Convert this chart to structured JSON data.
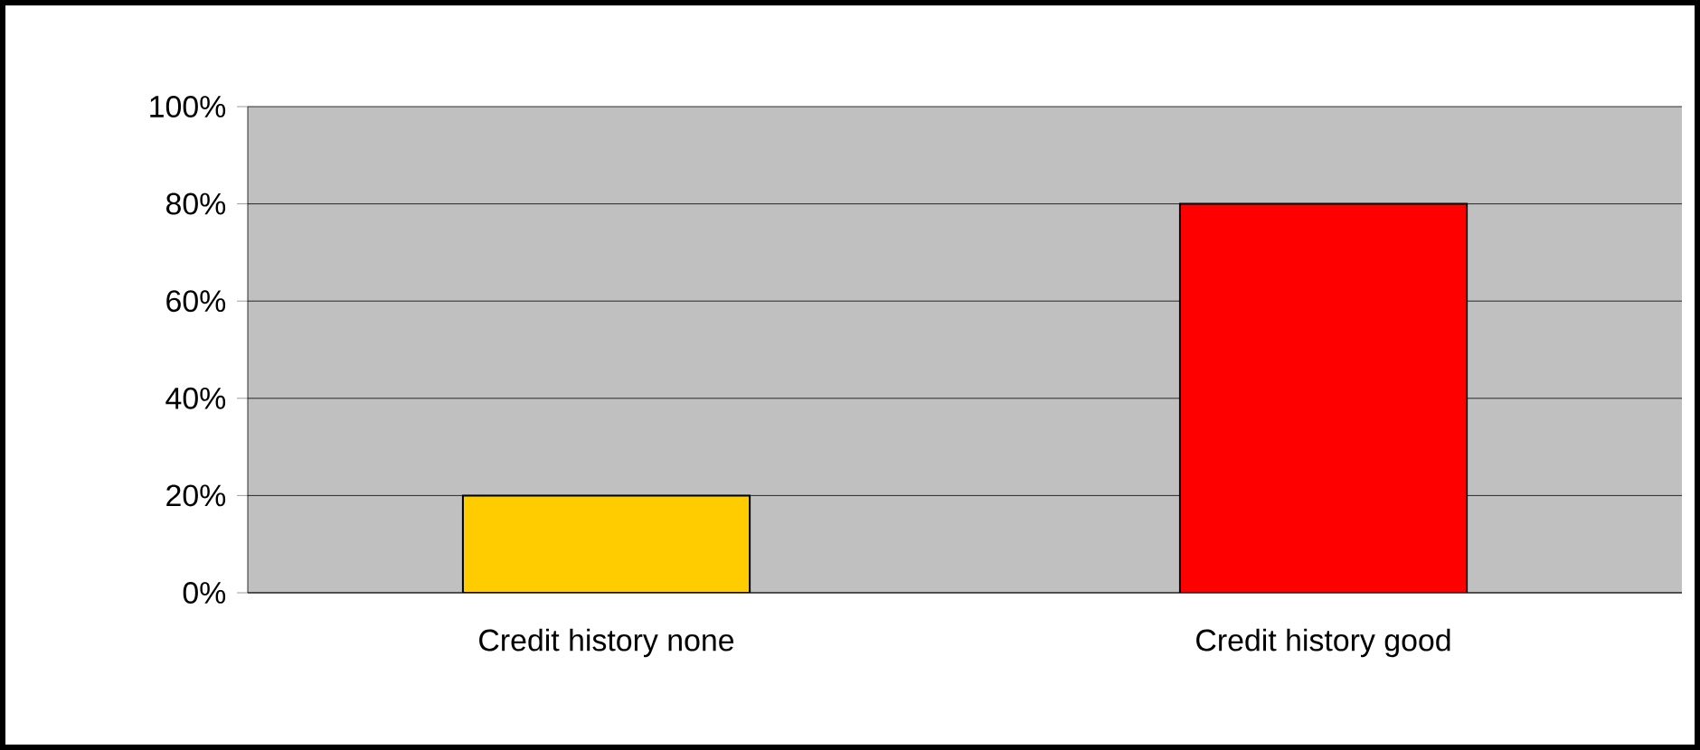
{
  "chart_data": {
    "type": "bar",
    "categories": [
      "Credit history none",
      "Credit history good"
    ],
    "values": [
      20,
      80
    ],
    "colors": [
      "#ffcc00",
      "#ff0000"
    ],
    "ylim": [
      0,
      100
    ],
    "yticks": [
      {
        "value": 0,
        "label": "0%"
      },
      {
        "value": 20,
        "label": "20%"
      },
      {
        "value": 40,
        "label": "40%"
      },
      {
        "value": 60,
        "label": "60%"
      },
      {
        "value": 80,
        "label": "80%"
      },
      {
        "value": 100,
        "label": "100%"
      }
    ],
    "grid": "y"
  }
}
